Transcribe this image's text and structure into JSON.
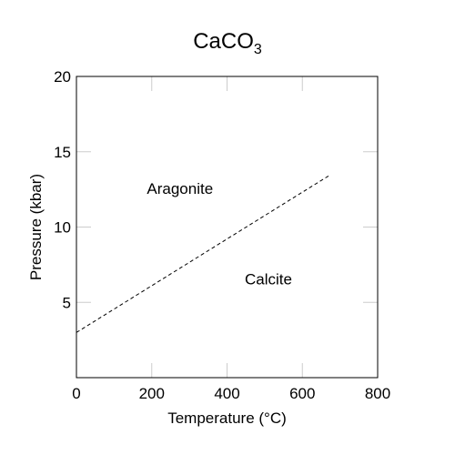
{
  "chart_data": {
    "type": "line",
    "title": {
      "main": "CaCO",
      "subscript": "3"
    },
    "xlabel": "Temperature (°C)",
    "ylabel": "Pressure (kbar)",
    "xlim": [
      0,
      800
    ],
    "ylim": [
      0,
      20
    ],
    "x_ticks": [
      0,
      200,
      400,
      600,
      800
    ],
    "y_ticks": [
      5,
      10,
      15,
      20
    ],
    "grid": false,
    "series": [
      {
        "style": "dashed",
        "color": "#000000",
        "x": [
          0,
          670
        ],
        "y": [
          3.0,
          13.4
        ]
      }
    ],
    "annotations": [
      {
        "text": "Aragonite",
        "x": 275,
        "y": 12.2
      },
      {
        "text": "Calcite",
        "x": 510,
        "y": 6.2
      }
    ]
  }
}
